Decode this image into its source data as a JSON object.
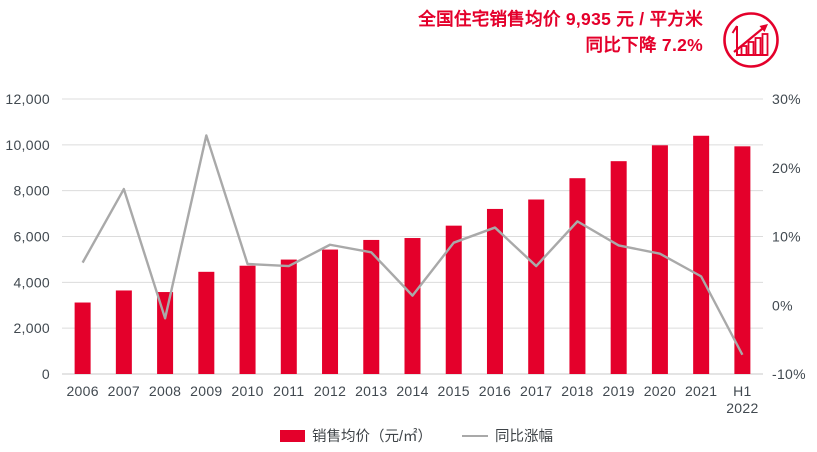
{
  "header": {
    "title_line1": "全国住宅销售均价 9,935 元 / 平方米",
    "title_line2": "同比下降 7.2%",
    "icon": "growth-trend-icon"
  },
  "legend": {
    "bar_label": "销售均价（元/㎡）",
    "line_label": "同比涨幅"
  },
  "colors": {
    "accent_red": "#E4002B",
    "line_gray": "#A9A9A9",
    "grid_gray": "#DCDCDC",
    "baseline_gray": "#C9C9C9",
    "axis_text": "#414950"
  },
  "chart_data": {
    "type": "combo-bar-line",
    "title": "全国住宅销售均价 9,935 元 / 平方米，同比下降 7.2%",
    "categories": [
      "2006",
      "2007",
      "2008",
      "2009",
      "2010",
      "2011",
      "2012",
      "2013",
      "2014",
      "2015",
      "2016",
      "2017",
      "2018",
      "2019",
      "2020",
      "2021",
      "H1 2022"
    ],
    "series": [
      {
        "name": "销售均价（元/㎡）",
        "type": "bar",
        "axis": "left",
        "color": "#E4002B",
        "values": [
          3119,
          3645,
          3576,
          4459,
          4725,
          4993,
          5430,
          5850,
          5933,
          6473,
          7203,
          7614,
          8544,
          9287,
          9980,
          10396,
          9935
        ]
      },
      {
        "name": "同比涨幅",
        "type": "line",
        "axis": "right",
        "color": "#A9A9A9",
        "values": [
          6.2,
          16.9,
          -1.9,
          24.7,
          6.0,
          5.7,
          8.8,
          7.7,
          1.4,
          9.1,
          11.3,
          5.7,
          12.2,
          8.7,
          7.5,
          4.2,
          -7.2
        ]
      }
    ],
    "left_axis": {
      "min": 0,
      "max": 12000,
      "ticks": [
        {
          "label": "12,000",
          "value": 12000
        },
        {
          "label": "10,000",
          "value": 10000
        },
        {
          "label": "8,000",
          "value": 8000
        },
        {
          "label": "6,000",
          "value": 6000
        },
        {
          "label": "4,000",
          "value": 4000
        },
        {
          "label": "2,000",
          "value": 2000
        },
        {
          "label": "0",
          "value": 0
        }
      ]
    },
    "right_axis": {
      "min": -10,
      "max": 30,
      "ticks": [
        {
          "label": "30%",
          "value": 30
        },
        {
          "label": "20%",
          "value": 20
        },
        {
          "label": "10%",
          "value": 10
        },
        {
          "label": "0%",
          "value": 0
        },
        {
          "label": "-10%",
          "value": -10
        }
      ]
    },
    "grid": "horizontal",
    "legend_position": "bottom"
  }
}
